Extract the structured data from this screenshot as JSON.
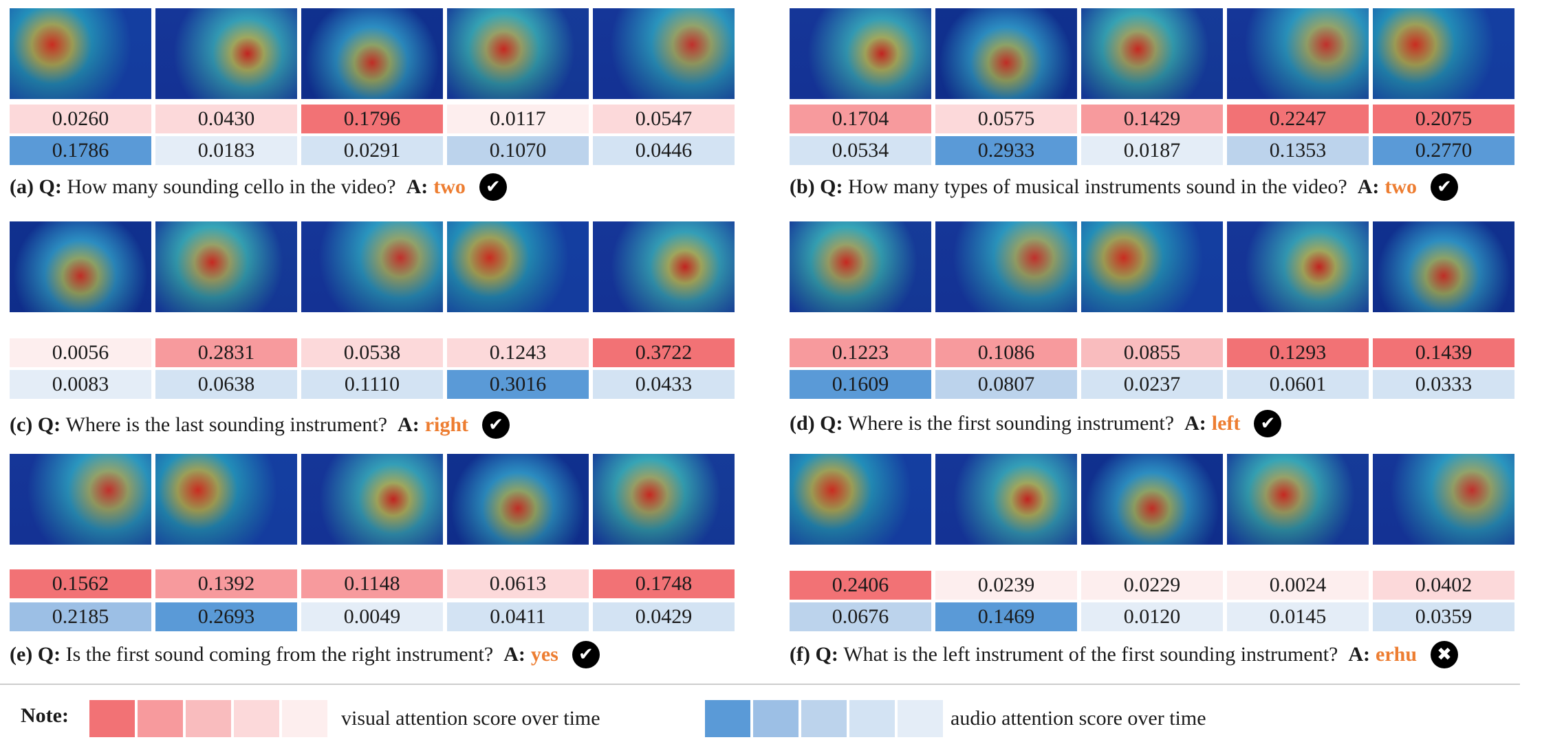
{
  "panels": [
    {
      "letter": "(a)",
      "question": "How many sounding cello in the video?",
      "answer": "two",
      "correct": true,
      "visual": [
        "0.0260",
        "0.0430",
        "0.1796",
        "0.0117",
        "0.0547"
      ],
      "audio": [
        "0.1786",
        "0.0183",
        "0.0291",
        "0.1070",
        "0.0446"
      ]
    },
    {
      "letter": "(b)",
      "question": "How many types of musical instruments sound in the video?",
      "answer": "two",
      "correct": true,
      "visual": [
        "0.1704",
        "0.0575",
        "0.1429",
        "0.2247",
        "0.2075"
      ],
      "audio": [
        "0.0534",
        "0.2933",
        "0.0187",
        "0.1353",
        "0.2770"
      ]
    },
    {
      "letter": "(c)",
      "question": "Where is the last sounding instrument?",
      "answer": "right",
      "correct": true,
      "visual": [
        "0.0056",
        "0.2831",
        "0.0538",
        "0.1243",
        "0.3722"
      ],
      "audio": [
        "0.0083",
        "0.0638",
        "0.1110",
        "0.3016",
        "0.0433"
      ]
    },
    {
      "letter": "(d)",
      "question": "Where is the first sounding instrument?",
      "answer": "left",
      "correct": true,
      "visual": [
        "0.1223",
        "0.1086",
        "0.0855",
        "0.1293",
        "0.1439"
      ],
      "audio": [
        "0.1609",
        "0.0807",
        "0.0237",
        "0.0601",
        "0.0333"
      ]
    },
    {
      "letter": "(e)",
      "question": "Is the first sound coming from the right instrument?",
      "answer": "yes",
      "correct": true,
      "visual": [
        "0.1562",
        "0.1392",
        "0.1148",
        "0.0613",
        "0.1748"
      ],
      "audio": [
        "0.2185",
        "0.2693",
        "0.0049",
        "0.0411",
        "0.0429"
      ]
    },
    {
      "letter": "(f)",
      "question": "What is the left instrument of the first sounding instrument?",
      "answer": "erhu",
      "correct": false,
      "visual": [
        "0.2406",
        "0.0239",
        "0.0229",
        "0.0024",
        "0.0402"
      ],
      "audio": [
        "0.0676",
        "0.1469",
        "0.0120",
        "0.0145",
        "0.0359"
      ]
    }
  ],
  "labels": {
    "q": "Q:",
    "a": "A:"
  },
  "note": {
    "label": "Note:",
    "visual_text": "visual attention score over time",
    "audio_text": "audio attention score over time"
  },
  "colors": {
    "accent_answer": "#ed7d31",
    "visual_scale": [
      "#fdeeee",
      "#fcd9da",
      "#f9bcbe",
      "#f79a9d",
      "#f27275"
    ],
    "audio_scale": [
      "#e4edf7",
      "#d3e3f3",
      "#bcd3ec",
      "#9cbfe5",
      "#5a9ad7"
    ]
  }
}
